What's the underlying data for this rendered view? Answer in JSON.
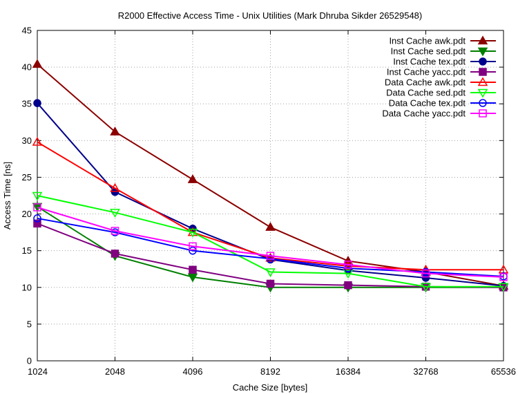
{
  "chart_data": {
    "type": "line",
    "title": "R2000 Effective Access Time - Unix Utilities (Mark Dhruba Sikder 26529548)",
    "xlabel": "Cache Size [bytes]",
    "ylabel": "Access Time [ns]",
    "x_scale": "log2",
    "categories": [
      "1024",
      "2048",
      "4096",
      "8192",
      "16384",
      "32768",
      "65536"
    ],
    "ylim": [
      0,
      45
    ],
    "yticks": [
      "0",
      "5",
      "10",
      "15",
      "20",
      "25",
      "30",
      "35",
      "40",
      "45"
    ],
    "grid": true,
    "legend_position": "top-right",
    "series": [
      {
        "name": "Inst Cache awk.pdt",
        "color": "#8b0000",
        "marker": "triangle-filled",
        "values": [
          40.4,
          31.2,
          24.7,
          18.2,
          13.6,
          12.1,
          10.2
        ]
      },
      {
        "name": "Inst Cache sed.pdt",
        "color": "#007f00",
        "marker": "inv-triangle-filled",
        "values": [
          21.0,
          14.3,
          11.4,
          10.0,
          10.0,
          10.0,
          10.0
        ]
      },
      {
        "name": "Inst Cache tex.pdt",
        "color": "#00008b",
        "marker": "circle-filled",
        "values": [
          35.1,
          23.0,
          18.0,
          13.8,
          12.3,
          11.3,
          10.2
        ]
      },
      {
        "name": "Inst Cache yacc.pdt",
        "color": "#800080",
        "marker": "square-filled",
        "values": [
          18.7,
          14.6,
          12.4,
          10.5,
          10.3,
          10.1,
          10.0
        ]
      },
      {
        "name": "Data Cache awk.pdt",
        "color": "#ff0000",
        "marker": "triangle-open",
        "values": [
          29.8,
          23.5,
          17.5,
          14.0,
          12.9,
          12.4,
          12.4
        ]
      },
      {
        "name": "Data Cache sed.pdt",
        "color": "#00ff00",
        "marker": "inv-triangle-open",
        "values": [
          22.5,
          20.2,
          17.5,
          12.1,
          11.9,
          10.1,
          10.1
        ]
      },
      {
        "name": "Data Cache tex.pdt",
        "color": "#0000ff",
        "marker": "circle-open",
        "values": [
          19.4,
          17.5,
          15.0,
          13.9,
          12.6,
          12.1,
          11.5
        ]
      },
      {
        "name": "Data Cache yacc.pdt",
        "color": "#ff00ff",
        "marker": "square-open",
        "values": [
          20.9,
          17.7,
          15.6,
          14.3,
          13.1,
          11.9,
          11.4
        ]
      }
    ]
  }
}
